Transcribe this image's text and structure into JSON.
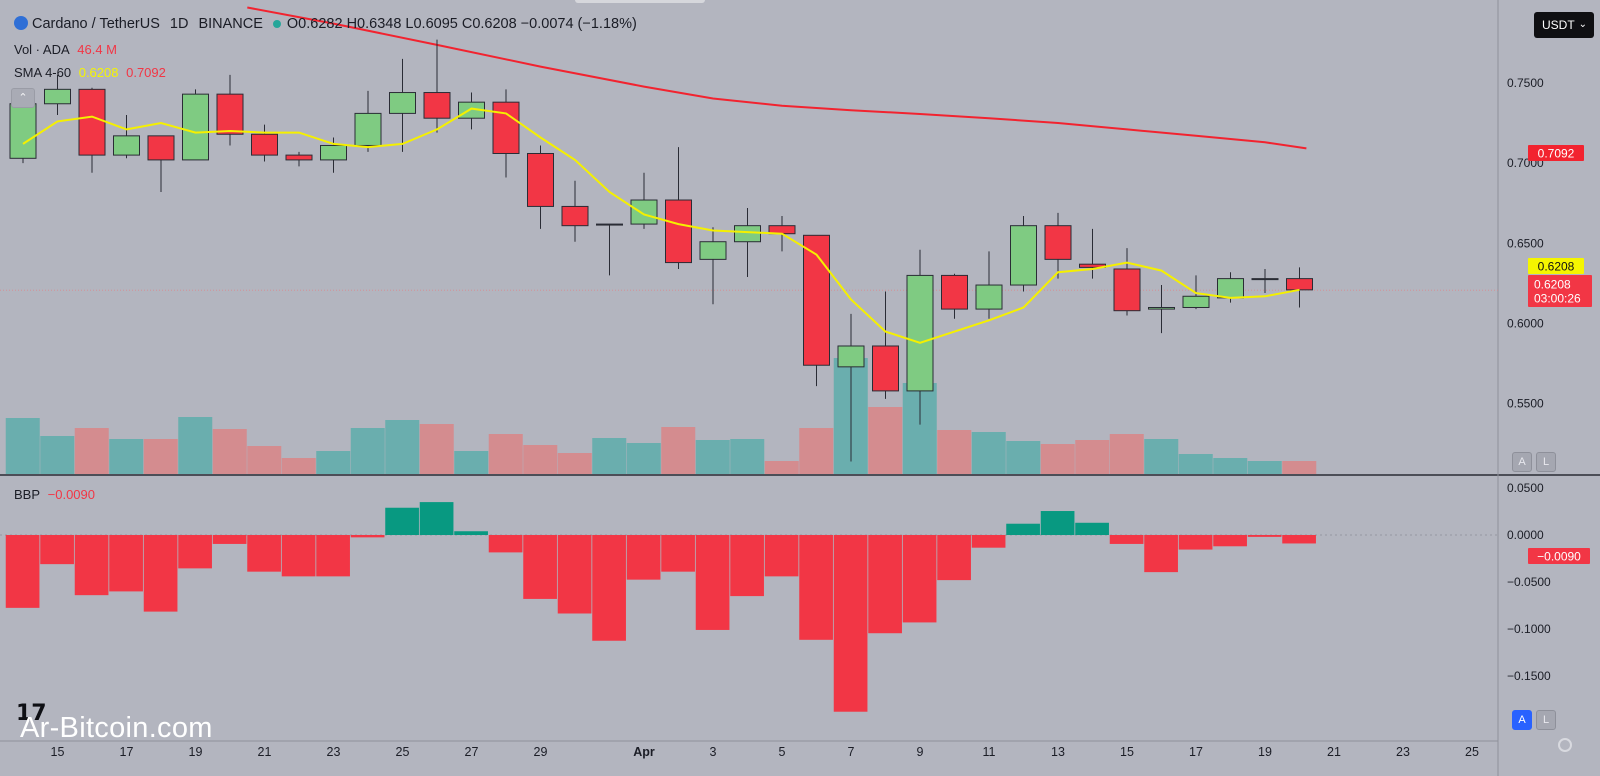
{
  "header": {
    "pair": "Cardano / TetherUS",
    "interval": "1D",
    "exchange": "BINANCE",
    "ohlc": "O0.6282 H0.6348 L0.6095 C0.6208 −0.0074 (−1.18%)"
  },
  "volume": {
    "label": "Vol · ADA",
    "value": "46.4 M"
  },
  "sma": {
    "label": "SMA 4-60",
    "short_value": "0.6208",
    "long_value": "0.7092"
  },
  "bbp": {
    "label": "BBP",
    "value": "−0.0090"
  },
  "currency_button": "USDT",
  "price_badges": {
    "sma_long": "0.7092",
    "sma_short": "0.6208",
    "last_price": "0.6208",
    "countdown": "03:00:26",
    "bbp_value": "−0.0090"
  },
  "controls": {
    "auto": "A",
    "log": "L"
  },
  "watermark": "Ar-Bitcoin.com",
  "tv_logo": "17",
  "colors": {
    "up": "#7fcb82",
    "down": "#f23645",
    "vol_up": "#6aaeae",
    "vol_down": "#d48c8f",
    "bbp_up": "#089981",
    "bbp_down": "#f23645",
    "sma_short": "#f5f000",
    "sma_long": "#f2232f",
    "background": "#b3b5bf"
  },
  "icons": {
    "collapse": "chevron-up-icon",
    "settings": "gear-icon",
    "symbol": "cardano-logo-icon"
  },
  "chart_data": [
    {
      "type": "candlestick",
      "title": "Cardano / TetherUS 1D BINANCE",
      "x_tick_labels": [
        "15",
        "17",
        "19",
        "21",
        "23",
        "25",
        "27",
        "29",
        "Apr",
        "3",
        "5",
        "7",
        "9",
        "11",
        "13",
        "15",
        "17",
        "19",
        "21",
        "23",
        "25"
      ],
      "x_tick_indices": [
        1,
        3,
        5,
        7,
        9,
        11,
        13,
        15,
        18,
        20,
        22,
        24,
        26,
        28,
        30,
        32,
        34,
        36,
        38,
        40,
        42
      ],
      "y_tick_labels": [
        "0.7500",
        "0.7000",
        "0.6500",
        "0.6000",
        "0.5500"
      ],
      "y_ticks": [
        0.75,
        0.7,
        0.65,
        0.6,
        0.55
      ],
      "ylim": [
        0.5062,
        0.7967
      ],
      "candles": [
        {
          "o": 0.703,
          "h": 0.745,
          "l": 0.7,
          "c": 0.737
        },
        {
          "o": 0.737,
          "h": 0.755,
          "l": 0.73,
          "c": 0.746
        },
        {
          "o": 0.746,
          "h": 0.747,
          "l": 0.694,
          "c": 0.705
        },
        {
          "o": 0.705,
          "h": 0.73,
          "l": 0.703,
          "c": 0.717
        },
        {
          "o": 0.717,
          "h": 0.717,
          "l": 0.682,
          "c": 0.702
        },
        {
          "o": 0.702,
          "h": 0.746,
          "l": 0.702,
          "c": 0.743
        },
        {
          "o": 0.743,
          "h": 0.755,
          "l": 0.711,
          "c": 0.718
        },
        {
          "o": 0.718,
          "h": 0.724,
          "l": 0.701,
          "c": 0.705
        },
        {
          "o": 0.705,
          "h": 0.707,
          "l": 0.698,
          "c": 0.702
        },
        {
          "o": 0.702,
          "h": 0.716,
          "l": 0.694,
          "c": 0.711
        },
        {
          "o": 0.711,
          "h": 0.745,
          "l": 0.707,
          "c": 0.731
        },
        {
          "o": 0.731,
          "h": 0.765,
          "l": 0.707,
          "c": 0.744
        },
        {
          "o": 0.744,
          "h": 0.777,
          "l": 0.719,
          "c": 0.728
        },
        {
          "o": 0.728,
          "h": 0.744,
          "l": 0.721,
          "c": 0.738
        },
        {
          "o": 0.738,
          "h": 0.746,
          "l": 0.691,
          "c": 0.706
        },
        {
          "o": 0.706,
          "h": 0.711,
          "l": 0.659,
          "c": 0.673
        },
        {
          "o": 0.673,
          "h": 0.689,
          "l": 0.651,
          "c": 0.661
        },
        {
          "o": 0.662,
          "h": 0.662,
          "l": 0.63,
          "c": 0.662
        },
        {
          "o": 0.662,
          "h": 0.694,
          "l": 0.659,
          "c": 0.677
        },
        {
          "o": 0.677,
          "h": 0.71,
          "l": 0.634,
          "c": 0.638
        },
        {
          "o": 0.64,
          "h": 0.66,
          "l": 0.612,
          "c": 0.651
        },
        {
          "o": 0.651,
          "h": 0.672,
          "l": 0.629,
          "c": 0.661
        },
        {
          "o": 0.661,
          "h": 0.667,
          "l": 0.645,
          "c": 0.656
        },
        {
          "o": 0.655,
          "h": 0.655,
          "l": 0.561,
          "c": 0.574
        },
        {
          "o": 0.573,
          "h": 0.606,
          "l": 0.514,
          "c": 0.586
        },
        {
          "o": 0.586,
          "h": 0.62,
          "l": 0.553,
          "c": 0.558
        },
        {
          "o": 0.558,
          "h": 0.646,
          "l": 0.537,
          "c": 0.63
        },
        {
          "o": 0.63,
          "h": 0.631,
          "l": 0.603,
          "c": 0.609
        },
        {
          "o": 0.609,
          "h": 0.645,
          "l": 0.603,
          "c": 0.624
        },
        {
          "o": 0.624,
          "h": 0.667,
          "l": 0.62,
          "c": 0.661
        },
        {
          "o": 0.661,
          "h": 0.669,
          "l": 0.628,
          "c": 0.64
        },
        {
          "o": 0.637,
          "h": 0.659,
          "l": 0.628,
          "c": 0.635
        },
        {
          "o": 0.634,
          "h": 0.647,
          "l": 0.605,
          "c": 0.608
        },
        {
          "o": 0.609,
          "h": 0.624,
          "l": 0.594,
          "c": 0.61
        },
        {
          "o": 0.61,
          "h": 0.63,
          "l": 0.609,
          "c": 0.617
        },
        {
          "o": 0.616,
          "h": 0.632,
          "l": 0.613,
          "c": 0.628
        },
        {
          "o": 0.628,
          "h": 0.634,
          "l": 0.619,
          "c": 0.628
        },
        {
          "o": 0.628,
          "h": 0.635,
          "l": 0.61,
          "c": 0.621
        }
      ],
      "sma_short": [
        0.712,
        0.726,
        0.729,
        0.721,
        0.725,
        0.719,
        0.72,
        0.719,
        0.719,
        0.712,
        0.71,
        0.712,
        0.721,
        0.734,
        0.731,
        0.716,
        0.702,
        0.682,
        0.668,
        0.662,
        0.658,
        0.657,
        0.656,
        0.643,
        0.615,
        0.595,
        0.588,
        0.595,
        0.602,
        0.61,
        0.632,
        0.634,
        0.638,
        0.633,
        0.619,
        0.616,
        0.617,
        0.621
      ],
      "sma_long_points": [
        {
          "i": 6.5,
          "v": 0.797
        },
        {
          "i": 9,
          "v": 0.787
        },
        {
          "i": 12,
          "v": 0.7737
        },
        {
          "i": 15,
          "v": 0.7602
        },
        {
          "i": 18,
          "v": 0.7477
        },
        {
          "i": 20,
          "v": 0.7403
        },
        {
          "i": 22,
          "v": 0.7358
        },
        {
          "i": 24,
          "v": 0.733
        },
        {
          "i": 26,
          "v": 0.7306
        },
        {
          "i": 28,
          "v": 0.728
        },
        {
          "i": 30,
          "v": 0.725
        },
        {
          "i": 32,
          "v": 0.721
        },
        {
          "i": 34,
          "v": 0.717
        },
        {
          "i": 36,
          "v": 0.713
        },
        {
          "i": 37.2,
          "v": 0.7092
        }
      ],
      "volume": {
        "label": "Vol · ADA",
        "values": [
          56,
          38,
          46,
          35,
          35,
          57,
          45,
          28,
          16,
          23,
          46,
          54,
          50,
          23,
          40,
          29,
          21,
          36,
          31,
          47,
          34,
          35,
          13,
          46,
          116,
          67,
          91,
          44,
          42,
          33,
          30,
          34,
          40,
          35,
          20,
          16,
          13,
          13
        ]
      }
    },
    {
      "type": "bar",
      "title": "BBP",
      "y_tick_labels": [
        "0.0500",
        "0.0000",
        "−0.0500",
        "−0.1000",
        "−0.1500"
      ],
      "y_ticks": [
        0.05,
        0.0,
        -0.05,
        -0.1,
        -0.15
      ],
      "ylim": [
        -0.195,
        0.068
      ],
      "values": [
        -0.0775,
        -0.031,
        -0.064,
        -0.06,
        -0.0815,
        -0.0355,
        -0.0095,
        -0.039,
        -0.044,
        -0.044,
        -0.0025,
        0.029,
        0.035,
        0.004,
        -0.0185,
        -0.068,
        -0.0835,
        -0.1125,
        -0.0475,
        -0.039,
        -0.101,
        -0.065,
        -0.044,
        -0.1115,
        -0.188,
        -0.1045,
        -0.093,
        -0.048,
        -0.0135,
        0.012,
        0.0255,
        0.013,
        -0.0095,
        -0.0395,
        -0.0155,
        -0.012,
        -0.002,
        -0.009
      ]
    }
  ]
}
